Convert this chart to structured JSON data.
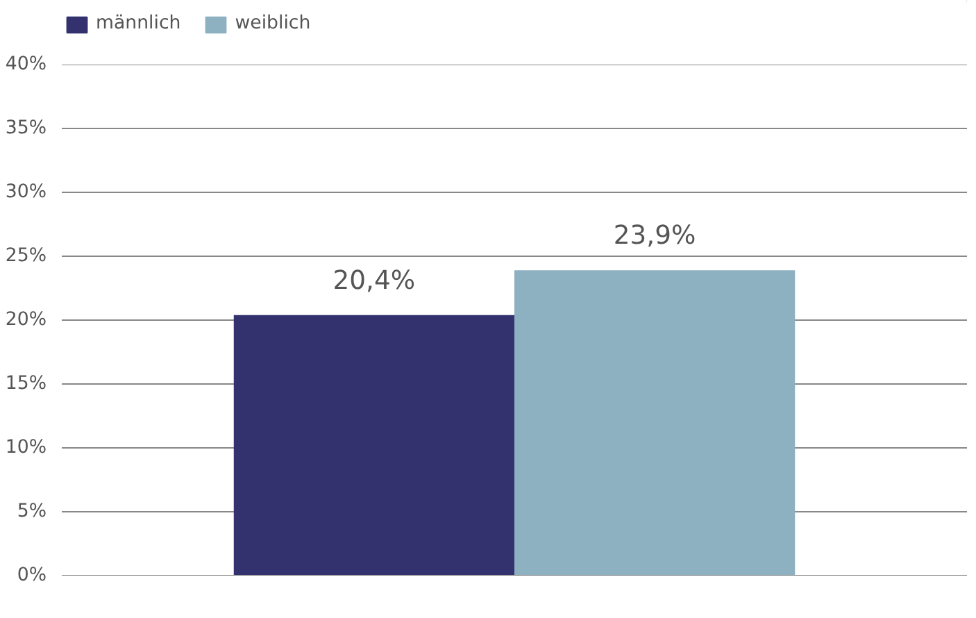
{
  "chart_data": {
    "type": "bar",
    "categories": [
      null
    ],
    "series": [
      {
        "name": "männlich",
        "color": "#33326f",
        "values": [
          20.4
        ],
        "value_labels": [
          "20,4%"
        ]
      },
      {
        "name": "weiblich",
        "color": "#8db1c0",
        "values": [
          23.9
        ],
        "value_labels": [
          "23,9%"
        ]
      }
    ],
    "ylim": [
      0,
      40
    ],
    "yticks": [
      {
        "value": 0,
        "label": "0%"
      },
      {
        "value": 5,
        "label": "5%"
      },
      {
        "value": 10,
        "label": "10%"
      },
      {
        "value": 15,
        "label": "15%"
      },
      {
        "value": 20,
        "label": "20%"
      },
      {
        "value": 25,
        "label": "25%"
      },
      {
        "value": 30,
        "label": "30%"
      },
      {
        "value": 35,
        "label": "35%"
      },
      {
        "value": 40,
        "label": "40%"
      }
    ],
    "grid": "y",
    "legend": "top left"
  }
}
